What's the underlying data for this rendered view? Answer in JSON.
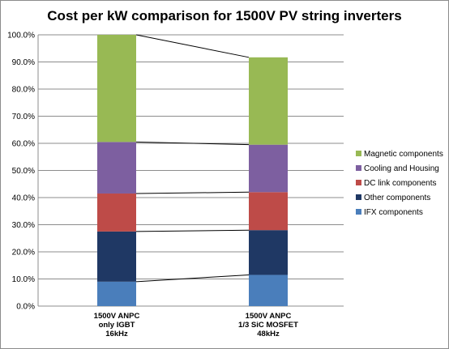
{
  "chart_data": {
    "type": "bar",
    "stacked": true,
    "title": "Cost per kW comparison for 1500V PV string inverters",
    "ylim": [
      0,
      100
    ],
    "ytick_labels": [
      "0.0%",
      "10.0%",
      "20.0%",
      "30.0%",
      "40.0%",
      "50.0%",
      "60.0%",
      "70.0%",
      "80.0%",
      "90.0%",
      "100.0%"
    ],
    "categories": [
      [
        "1500V ANPC",
        "only IGBT",
        "16kHz"
      ],
      [
        "1500V ANPC",
        "1/3 SiC MOSFET",
        "48kHz"
      ]
    ],
    "series": [
      {
        "name": "IFX components",
        "color": "#4a7ebb",
        "values": [
          9.0,
          11.5
        ]
      },
      {
        "name": "Other components",
        "color": "#1f3864",
        "values": [
          18.5,
          16.5
        ]
      },
      {
        "name": "DC link components",
        "color": "#be4b48",
        "values": [
          14.0,
          14.0
        ]
      },
      {
        "name": "Cooling and Housing",
        "color": "#7d5fa0",
        "values": [
          19.0,
          17.5
        ]
      },
      {
        "name": "Magnetic components",
        "color": "#98b954",
        "values": [
          39.5,
          32.2
        ]
      }
    ],
    "legend_position": "right",
    "grid": true,
    "connector_lines": true
  }
}
